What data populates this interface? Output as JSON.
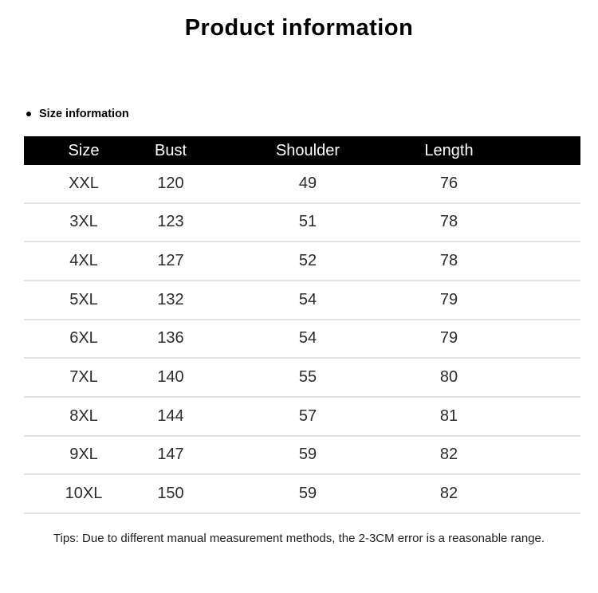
{
  "title": "Product information",
  "section": {
    "label": "Size information"
  },
  "table": {
    "headers": [
      "Size",
      "Bust",
      "Shoulder",
      "Length"
    ],
    "rows": [
      [
        "XXL",
        "120",
        "49",
        "76"
      ],
      [
        "3XL",
        "123",
        "51",
        "78"
      ],
      [
        "4XL",
        "127",
        "52",
        "78"
      ],
      [
        "5XL",
        "132",
        "54",
        "79"
      ],
      [
        "6XL",
        "136",
        "54",
        "79"
      ],
      [
        "7XL",
        "140",
        "55",
        "80"
      ],
      [
        "8XL",
        "144",
        "57",
        "81"
      ],
      [
        "9XL",
        "147",
        "59",
        "82"
      ],
      [
        "10XL",
        "150",
        "59",
        "82"
      ]
    ]
  },
  "tips": "Tips: Due to different manual measurement methods, the 2-3CM error is a reasonable range.",
  "colors": {
    "title_text": "#000000",
    "header_bg": "#000000",
    "header_text": "#ffffff",
    "body_text": "#2b2b2b",
    "divider": "#e2e2e2"
  }
}
